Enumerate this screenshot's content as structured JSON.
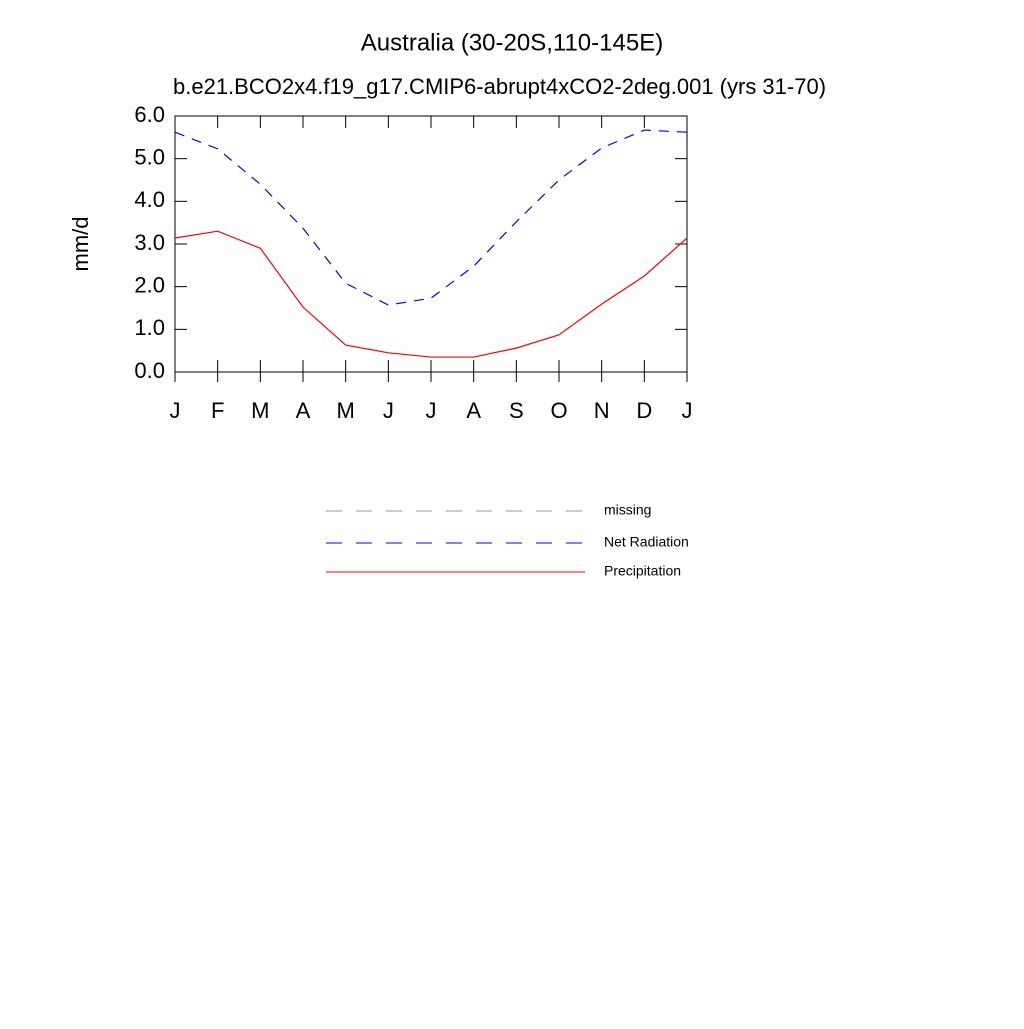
{
  "chart_data": {
    "type": "line",
    "title": "Australia (30-20S,110-145E)",
    "subtitle": "b.e21.BCO2x4.f19_g17.CMIP6-abrupt4xCO2-2deg.001 (yrs 31-70)",
    "y_label": "mm/d",
    "categories": [
      "J",
      "F",
      "M",
      "A",
      "M",
      "J",
      "J",
      "A",
      "S",
      "O",
      "N",
      "D",
      "J"
    ],
    "series": [
      {
        "name": "missing",
        "color": "#999999",
        "dash": true,
        "values": [
          null,
          null,
          null,
          null,
          null,
          null,
          null,
          null,
          null,
          null,
          null,
          null,
          null
        ]
      },
      {
        "name": "Net Radiation",
        "color": "#0000ff",
        "dash": true,
        "values": [
          5.62,
          5.23,
          4.4,
          3.37,
          2.08,
          1.57,
          1.73,
          2.48,
          3.52,
          4.5,
          5.25,
          5.67,
          5.62
        ]
      },
      {
        "name": "Precipitation",
        "color": "#ff0000",
        "dash": false,
        "values": [
          3.14,
          3.3,
          2.9,
          1.52,
          0.63,
          0.45,
          0.35,
          0.35,
          0.56,
          0.87,
          1.59,
          2.25,
          3.14
        ]
      }
    ],
    "ylim": [
      0,
      6
    ],
    "yticks": [
      {
        "value": 0,
        "label": "0.0"
      },
      {
        "value": 1,
        "label": "1.0"
      },
      {
        "value": 2,
        "label": "2.0"
      },
      {
        "value": 3,
        "label": "3.0"
      },
      {
        "value": 4,
        "label": "4.0"
      },
      {
        "value": 5,
        "label": "5.0"
      },
      {
        "value": 6,
        "label": "6.0"
      }
    ],
    "legend": "bottom"
  }
}
